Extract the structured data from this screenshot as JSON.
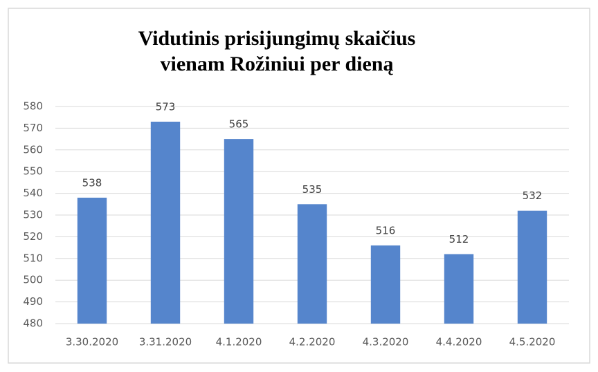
{
  "chart_data": {
    "type": "bar",
    "title": [
      "Vidutinis prisijungimų skaičius",
      "vienam Rožiniui per dieną"
    ],
    "categories": [
      "3.30.2020",
      "3.31.2020",
      "4.1.2020",
      "4.2.2020",
      "4.3.2020",
      "4.4.2020",
      "4.5.2020"
    ],
    "values": [
      538,
      573,
      565,
      535,
      516,
      512,
      532
    ],
    "color": "#5585cc",
    "ylim": [
      480,
      580
    ],
    "yticks": [
      480,
      490,
      500,
      510,
      520,
      530,
      540,
      550,
      560,
      570,
      580
    ],
    "grid": true
  }
}
